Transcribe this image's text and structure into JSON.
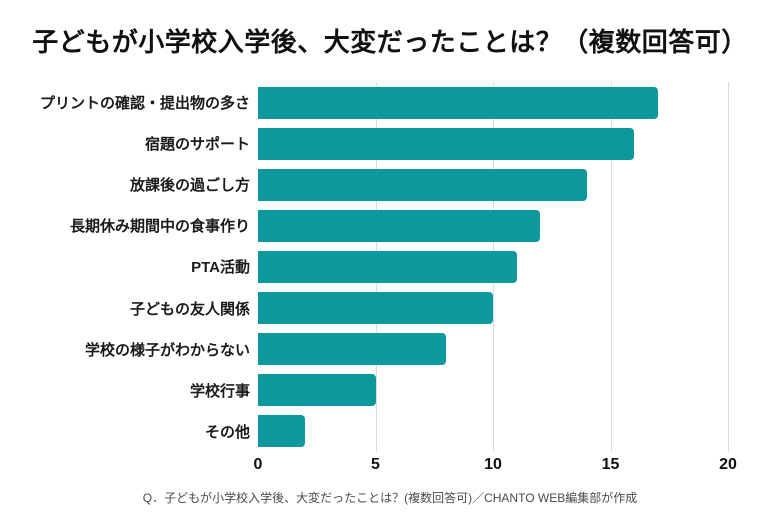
{
  "title": "子どもが小学校入学後、大変だったことは？（複数回答可）",
  "footer": "Q．子どもが小学校入学後、大変だったことは？(複数回答可)／CHANTO WEB編集部が作成",
  "colors": {
    "bar": "#0D989D",
    "grid": "#DBDBDB",
    "title_text": "#111111",
    "label_text": "#1A1A1A",
    "tick_text": "#111111",
    "footer_text": "#4A4A4A",
    "background": "#FFFFFF"
  },
  "chart_data": {
    "type": "bar",
    "orientation": "horizontal",
    "title": "子どもが小学校入学後、大変だったことは？（複数回答可）",
    "categories": [
      "プリントの確認・提出物の多さ",
      "宿題のサポート",
      "放課後の過ごし方",
      "長期休み期間中の食事作り",
      "PTA活動",
      "子どもの友人関係",
      "学校の様子がわからない",
      "学校行事",
      "その他"
    ],
    "values": [
      17,
      16,
      14,
      12,
      11,
      10,
      8,
      5,
      2
    ],
    "xlabel": "",
    "ylabel": "",
    "xlim": [
      0,
      20
    ],
    "xticks": [
      0,
      5,
      10,
      15,
      20
    ],
    "grid": "vertical",
    "legend": false,
    "annotation": "Q．子どもが小学校入学後、大変だったことは？(複数回答可)／CHANTO WEB編集部が作成"
  }
}
